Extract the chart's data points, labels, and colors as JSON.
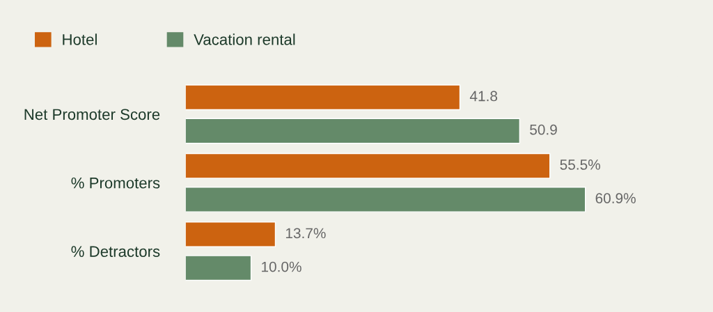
{
  "chart_data": {
    "type": "bar",
    "orientation": "horizontal",
    "categories": [
      "Net Promoter Score",
      "% Promoters",
      "% Detractors"
    ],
    "series": [
      {
        "name": "Hotel",
        "color": "#cc6310",
        "values": [
          41.8,
          55.5,
          13.7
        ],
        "value_labels": [
          "41.8",
          "55.5%",
          "13.7%"
        ]
      },
      {
        "name": "Vacation rental",
        "color": "#648a69",
        "values": [
          50.9,
          60.9,
          10.0
        ],
        "value_labels": [
          "50.9",
          "60.9%",
          "10.0%"
        ]
      }
    ],
    "tick_labels": "y",
    "grid": false,
    "legend": "top left"
  }
}
